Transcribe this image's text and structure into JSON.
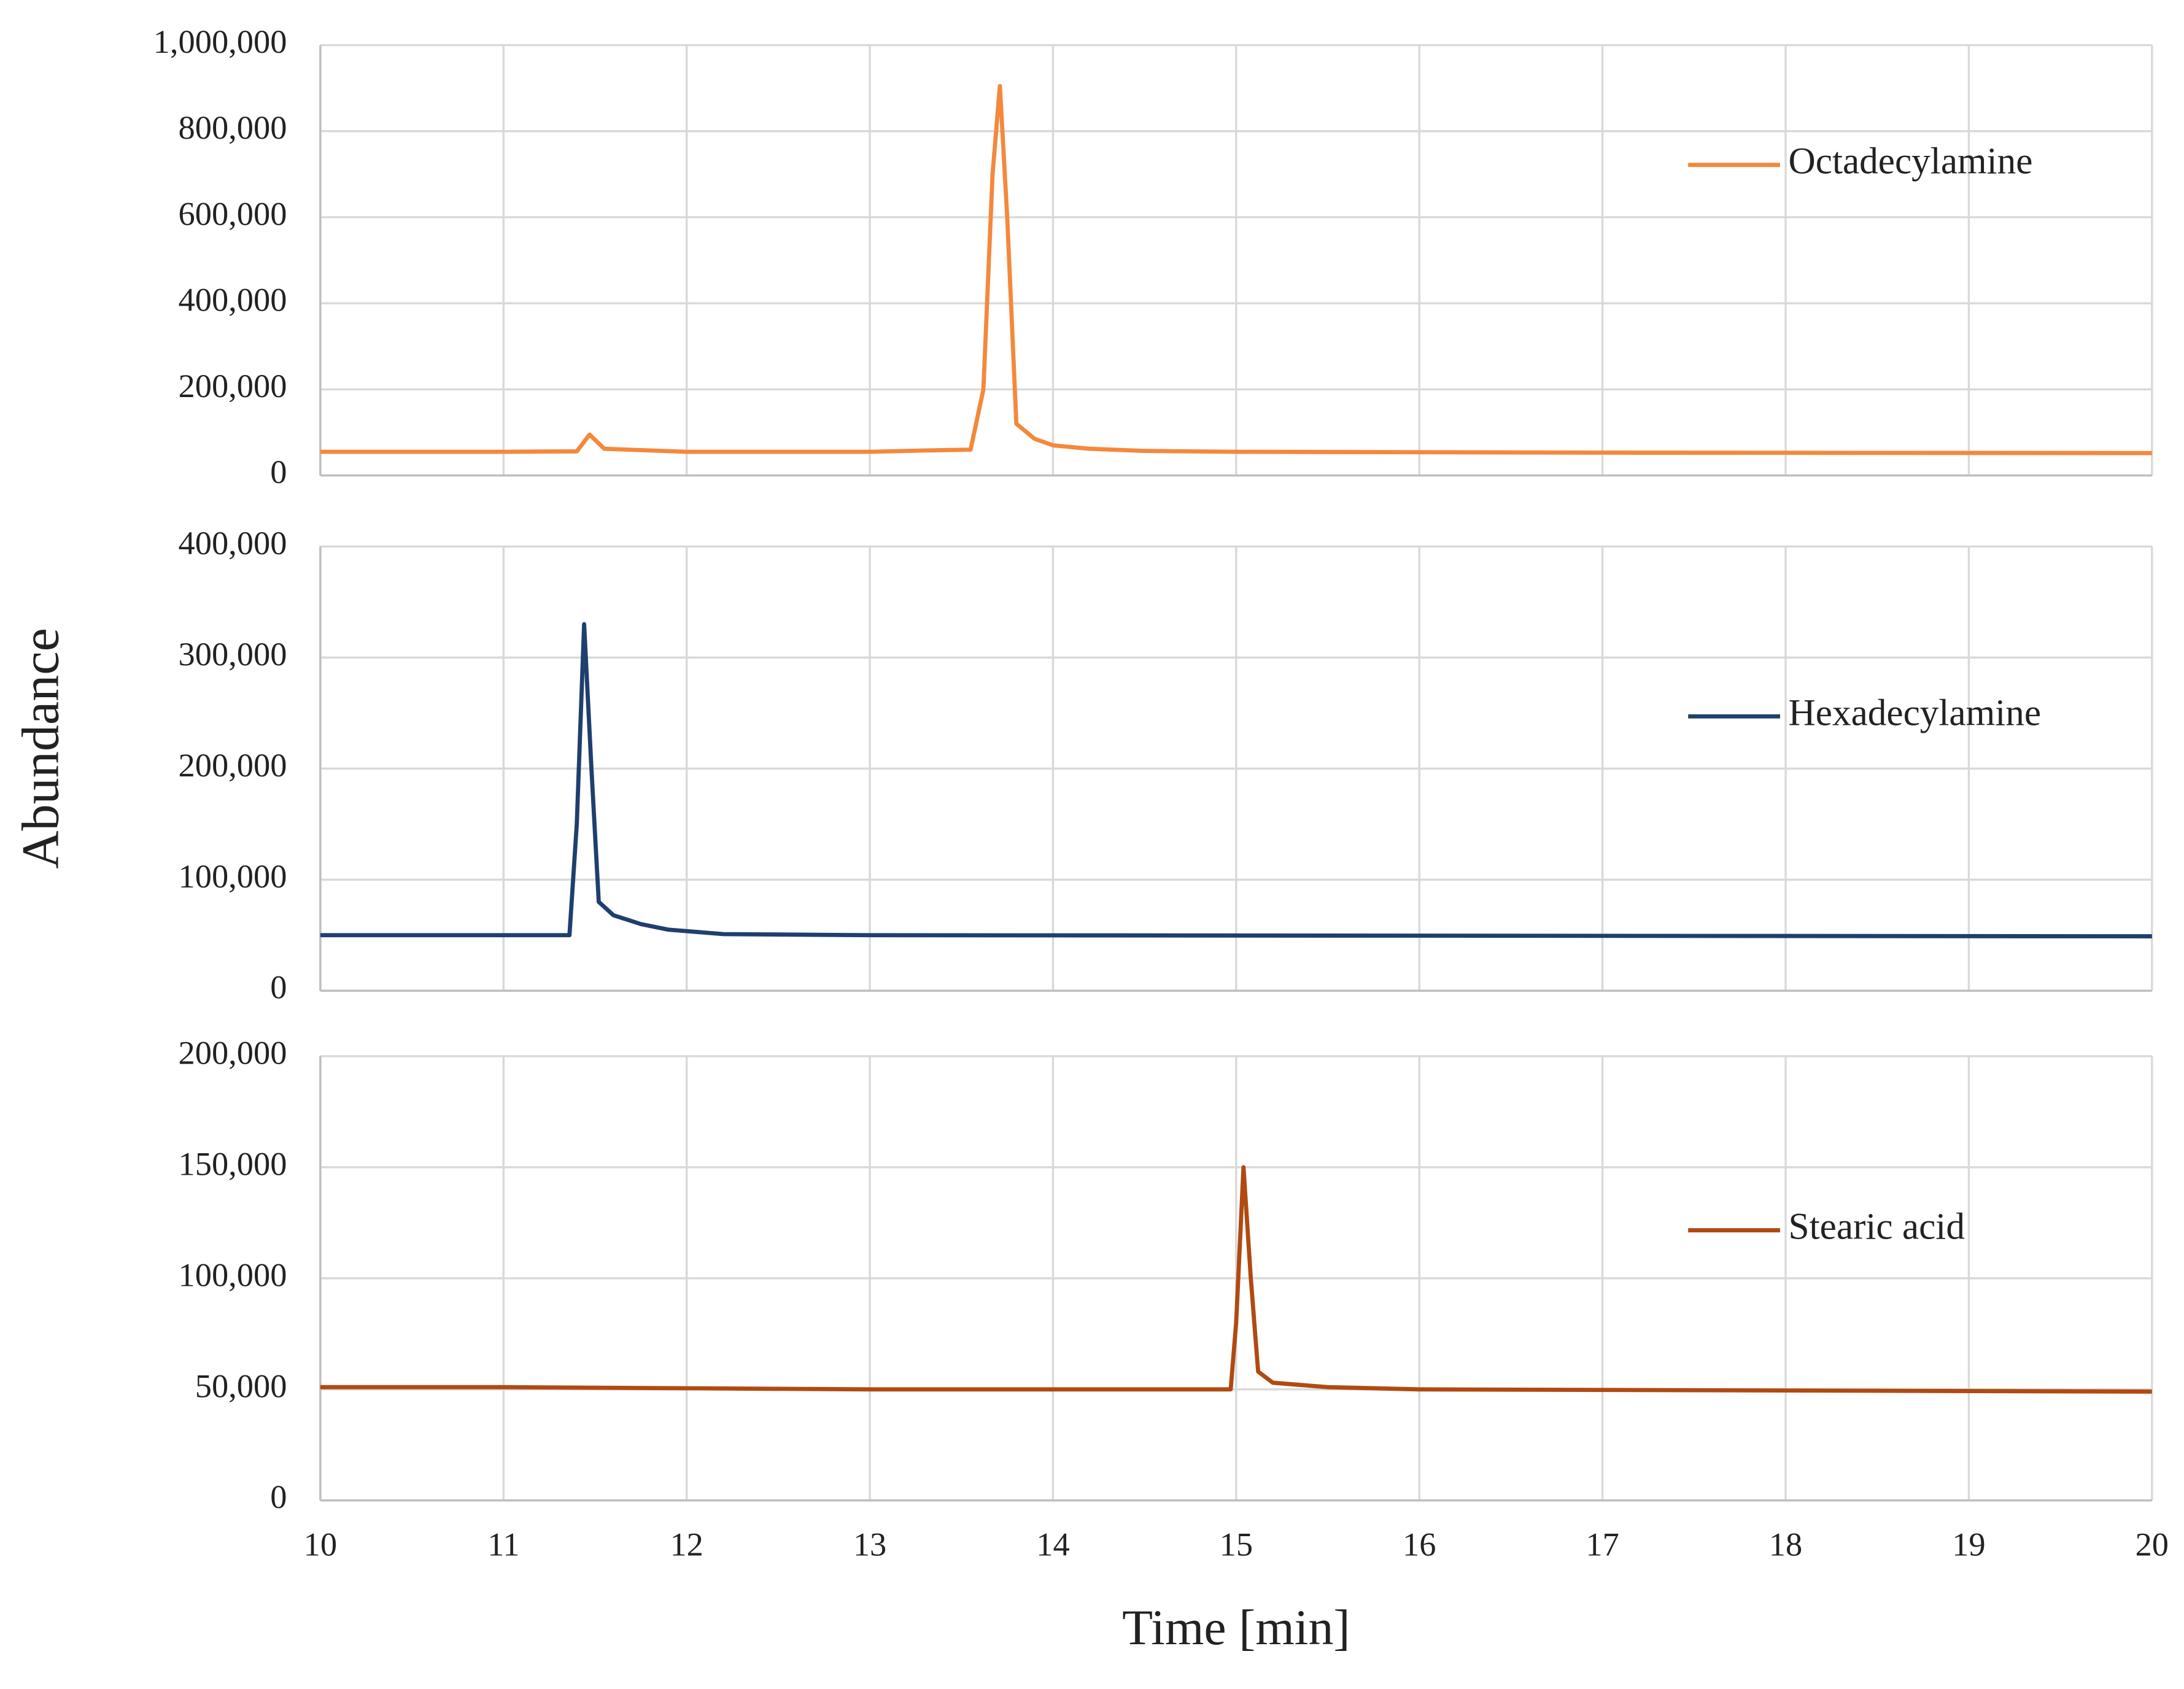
{
  "chart_data": [
    {
      "type": "line",
      "x": [
        10,
        11,
        11.4,
        11.47,
        11.55,
        12,
        13,
        13.3,
        13.55,
        13.62,
        13.67,
        13.71,
        13.75,
        13.8,
        13.9,
        14,
        14.2,
        14.5,
        15,
        17,
        20
      ],
      "series": [
        {
          "name": "Octadecylamine",
          "color": "#f4883b",
          "values": [
            55000,
            55000,
            56000,
            95000,
            62000,
            55000,
            55000,
            58000,
            60000,
            200000,
            700000,
            905000,
            600000,
            120000,
            85000,
            70000,
            62000,
            57000,
            55000,
            53000,
            52000
          ]
        }
      ],
      "xlim": [
        10,
        20
      ],
      "ylim": [
        0,
        1000000
      ],
      "yticks": [
        0,
        {
          "value": 200000,
          "label": "200,000"
        },
        {
          "value": 400000,
          "label": "400,000"
        },
        {
          "value": 600000,
          "label": "600,000"
        },
        {
          "value": 800000,
          "label": "800,000"
        },
        {
          "value": 1000000,
          "label": "1,000,000"
        }
      ],
      "grid": true,
      "legend": "right"
    },
    {
      "type": "line",
      "x": [
        10,
        11,
        11.36,
        11.4,
        11.44,
        11.48,
        11.52,
        11.6,
        11.75,
        11.9,
        12.2,
        13,
        20
      ],
      "series": [
        {
          "name": "Hexadecylamine",
          "color": "#1f3f6e",
          "values": [
            50000,
            50000,
            50000,
            150000,
            330000,
            200000,
            80000,
            68000,
            60000,
            55000,
            51000,
            50000,
            49000
          ]
        }
      ],
      "xlim": [
        10,
        20
      ],
      "ylim": [
        0,
        400000
      ],
      "yticks": [
        0,
        {
          "value": 100000,
          "label": "100,000"
        },
        {
          "value": 200000,
          "label": "200,000"
        },
        {
          "value": 300000,
          "label": "300,000"
        },
        {
          "value": 400000,
          "label": "400,000"
        }
      ],
      "ylabel": "Abundance",
      "grid": true,
      "legend": "right"
    },
    {
      "type": "line",
      "x": [
        10,
        11,
        12,
        13,
        14,
        14.97,
        15,
        15.04,
        15.08,
        15.12,
        15.2,
        15.5,
        16,
        18,
        20
      ],
      "series": [
        {
          "name": "Stearic acid",
          "color": "#b04a12",
          "values": [
            51000,
            51000,
            50500,
            50000,
            50000,
            50000,
            80000,
            150000,
            100000,
            58000,
            53000,
            51000,
            50000,
            49500,
            49000
          ]
        }
      ],
      "xlim": [
        10,
        20
      ],
      "xticks": [
        10,
        11,
        12,
        13,
        14,
        15,
        16,
        17,
        18,
        19,
        20
      ],
      "ylim": [
        0,
        200000
      ],
      "yticks": [
        0,
        {
          "value": 50000,
          "label": "50,000"
        },
        {
          "value": 100000,
          "label": "100,000"
        },
        {
          "value": 150000,
          "label": "150,000"
        },
        {
          "value": 200000,
          "label": "200,000"
        }
      ],
      "xlabel": "Time [min]",
      "grid": true,
      "legend": "right"
    }
  ]
}
